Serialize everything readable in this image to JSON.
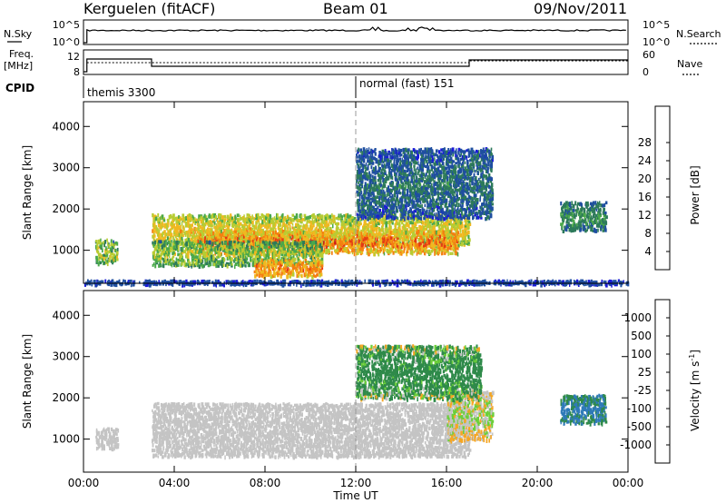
{
  "header": {
    "station": "Kerguelen  (fitACF)",
    "beam": "Beam 01",
    "date": "09/Nov/2011"
  },
  "top_panels": {
    "nsky_label": "N.Sky",
    "nsky_ticks": [
      "10^5",
      "10^0"
    ],
    "nsearch_label": "N.Search",
    "nsearch_ticks": [
      "10^5",
      "10^0"
    ],
    "freq_label_1": "Freq.",
    "freq_label_2": "[MHz]",
    "freq_ticks": [
      "12",
      "8"
    ],
    "nave_label": "Nave",
    "nave_ticks": [
      "60",
      "0"
    ],
    "cpid_label": "CPID",
    "cpid_entries": [
      {
        "name": "themis 3300",
        "start_hour": 0,
        "end_hour": 12
      },
      {
        "name": "normal (fast) 151",
        "start_hour": 12,
        "end_hour": 24
      }
    ]
  },
  "x_axis": {
    "label": "Time UT",
    "ticks": [
      "00:00",
      "04:00",
      "08:00",
      "12:00",
      "16:00",
      "20:00",
      "00:00"
    ],
    "range_hours": [
      0,
      24
    ]
  },
  "chart_data": [
    {
      "type": "heatmap",
      "name": "power",
      "ylabel": "Slant Range [km]",
      "yticks": [
        "1000",
        "2000",
        "3000",
        "4000"
      ],
      "ylim": [
        200,
        4600
      ],
      "colorbar_label": "Power [dB]",
      "colorbar_ticks": [
        "4",
        "8",
        "12",
        "16",
        "20",
        "24",
        "28"
      ],
      "colors": [
        "#1a1ad8",
        "#1f4fa0",
        "#2d7a5a",
        "#4aa84a",
        "#b7cc33",
        "#f0b820",
        "#f57f10",
        "#e43a14",
        "#d01414"
      ],
      "bands": [
        {
          "t0": 3.0,
          "t1": 17.0,
          "r0": 1150,
          "r1": 1900,
          "p0": 12,
          "p1": 22
        },
        {
          "t0": 5.0,
          "t1": 16.5,
          "r0": 950,
          "r1": 1500,
          "p0": 14,
          "p1": 28
        },
        {
          "t0": 3.0,
          "t1": 10.5,
          "r0": 650,
          "r1": 1250,
          "p0": 8,
          "p1": 20
        },
        {
          "t0": 7.5,
          "t1": 10.5,
          "r0": 400,
          "r1": 800,
          "p0": 16,
          "p1": 26
        },
        {
          "t0": 12.0,
          "t1": 18.0,
          "r0": 1800,
          "r1": 3500,
          "p0": 4,
          "p1": 12
        },
        {
          "t0": 0.5,
          "t1": 1.5,
          "r0": 700,
          "r1": 1300,
          "p0": 6,
          "p1": 22
        },
        {
          "t0": 21.0,
          "t1": 23.0,
          "r0": 1500,
          "r1": 2200,
          "p0": 6,
          "p1": 14
        },
        {
          "t0": 0.0,
          "t1": 24.0,
          "r0": 200,
          "r1": 300,
          "p0": 4,
          "p1": 8
        }
      ]
    },
    {
      "type": "heatmap",
      "name": "velocity",
      "ylabel": "Slant Range [km]",
      "yticks": [
        "1000",
        "2000",
        "3000",
        "4000"
      ],
      "ylim": [
        200,
        4600
      ],
      "colorbar_label": "Velocity  [m s",
      "colorbar_sup": "-1",
      "colorbar_suffix": "]",
      "colorbar_ticks": [
        "1000",
        "500",
        "100",
        "25",
        "-25",
        "-100",
        "-500",
        "-1000"
      ],
      "colors": [
        "#2a3aa8",
        "#2f7ab8",
        "#2f8a4a",
        "#6ccf3a",
        "#c4c4c4",
        "#f5a623",
        "#f47c18",
        "#e83a14",
        "#e01010"
      ],
      "bands": [
        {
          "t0": 3.0,
          "t1": 17.0,
          "r0": 600,
          "r1": 1900,
          "v0": -25,
          "v1": 25
        },
        {
          "t0": 16.0,
          "t1": 18.0,
          "r0": 1000,
          "r1": 2200,
          "v0": -100,
          "v1": 100
        },
        {
          "t0": 12.0,
          "t1": 17.5,
          "r0": 2000,
          "r1": 3300,
          "v0": -100,
          "v1": 500
        },
        {
          "t0": 21.0,
          "t1": 23.0,
          "r0": 1400,
          "r1": 2100,
          "v0": 100,
          "v1": 1000
        },
        {
          "t0": 0.5,
          "t1": 1.5,
          "r0": 800,
          "r1": 1300,
          "v0": -25,
          "v1": 25
        }
      ]
    }
  ]
}
